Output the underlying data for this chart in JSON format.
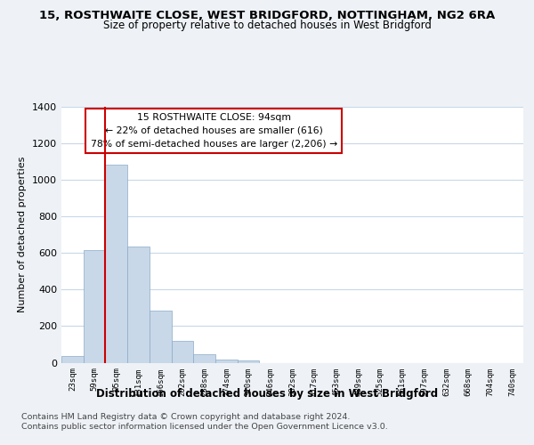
{
  "title": "15, ROSTHWAITE CLOSE, WEST BRIDGFORD, NOTTINGHAM, NG2 6RA",
  "subtitle": "Size of property relative to detached houses in West Bridgford",
  "xlabel": "Distribution of detached houses by size in West Bridgford",
  "ylabel": "Number of detached properties",
  "footnote1": "Contains HM Land Registry data © Crown copyright and database right 2024.",
  "footnote2": "Contains public sector information licensed under the Open Government Licence v3.0.",
  "bar_labels": [
    "23sqm",
    "59sqm",
    "95sqm",
    "131sqm",
    "166sqm",
    "202sqm",
    "238sqm",
    "274sqm",
    "310sqm",
    "346sqm",
    "382sqm",
    "417sqm",
    "453sqm",
    "489sqm",
    "525sqm",
    "561sqm",
    "597sqm",
    "632sqm",
    "668sqm",
    "704sqm",
    "740sqm"
  ],
  "bar_values": [
    35,
    615,
    1085,
    635,
    285,
    120,
    48,
    18,
    10,
    0,
    0,
    0,
    0,
    0,
    0,
    0,
    0,
    0,
    0,
    0,
    0
  ],
  "bar_color": "#c8d8e8",
  "bar_edge_color": "#8aaac8",
  "marker_color": "#cc0000",
  "marker_bar_index": 2,
  "annotation_title": "15 ROSTHWAITE CLOSE: 94sqm",
  "annotation_line1": "← 22% of detached houses are smaller (616)",
  "annotation_line2": "78% of semi-detached houses are larger (2,206) →",
  "ylim": [
    0,
    1400
  ],
  "yticks": [
    0,
    200,
    400,
    600,
    800,
    1000,
    1200,
    1400
  ],
  "bg_color": "#eef2f7",
  "plot_bg_color": "#ffffff",
  "grid_color": "#c8d8e8"
}
